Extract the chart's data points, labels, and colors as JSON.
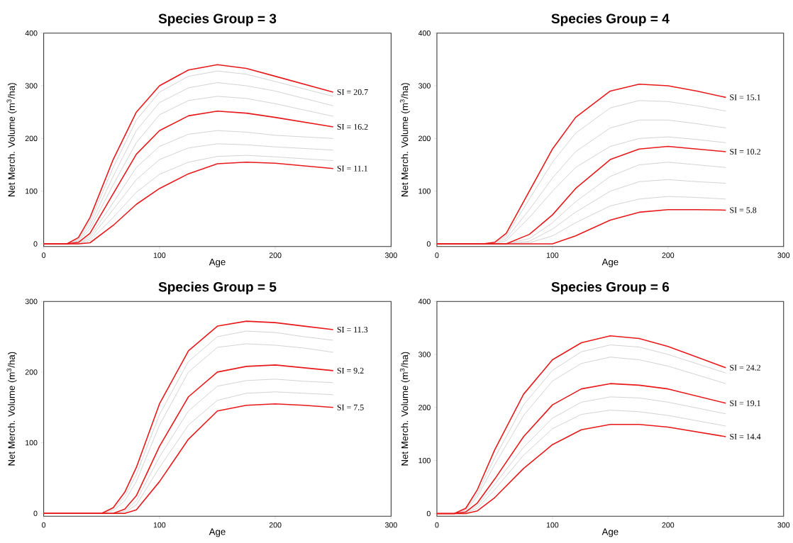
{
  "chart_data": [
    {
      "type": "line",
      "title": "Species Group = 3",
      "xlabel": "Age",
      "ylabel": "Net Merch. Volume (m$^{3}$/ha)",
      "xlim": [
        0,
        300
      ],
      "ylim": [
        -5,
        400
      ],
      "xticks": [
        0,
        100,
        200,
        300
      ],
      "yticks": [
        0,
        100,
        200,
        300,
        400
      ],
      "x": [
        0,
        20,
        30,
        40,
        60,
        80,
        100,
        125,
        150,
        175,
        200,
        250
      ],
      "series": [
        {
          "color": "#c8c8c8",
          "values": [
            0,
            0,
            10,
            42,
            145,
            235,
            288,
            318,
            328,
            322,
            308,
            280
          ]
        },
        {
          "color": "#c8c8c8",
          "values": [
            0,
            0,
            8,
            35,
            128,
            215,
            268,
            296,
            306,
            300,
            290,
            262
          ]
        },
        {
          "color": "#c8c8c8",
          "values": [
            0,
            0,
            6,
            28,
            112,
            192,
            245,
            272,
            280,
            276,
            266,
            242
          ]
        },
        {
          "color": "#c8c8c8",
          "values": [
            0,
            0,
            2,
            14,
            78,
            145,
            185,
            208,
            215,
            212,
            206,
            200
          ]
        },
        {
          "color": "#c8c8c8",
          "values": [
            0,
            0,
            1,
            10,
            65,
            122,
            160,
            182,
            190,
            188,
            184,
            178
          ]
        },
        {
          "color": "#c8c8c8",
          "values": [
            0,
            0,
            0,
            6,
            50,
            98,
            132,
            155,
            166,
            168,
            165,
            158
          ]
        },
        {
          "name": "SI = 20.7",
          "color": "#e8191b",
          "values": [
            0,
            0,
            12,
            50,
            160,
            250,
            300,
            330,
            340,
            333,
            318,
            288
          ]
        },
        {
          "name": "SI = 16.2",
          "color": "#e8191b",
          "values": [
            0,
            0,
            3,
            20,
            95,
            170,
            215,
            243,
            252,
            248,
            240,
            222
          ]
        },
        {
          "name": "SI = 11.1",
          "color": "#e8191b",
          "values": [
            0,
            0,
            0,
            2,
            35,
            75,
            105,
            133,
            152,
            155,
            153,
            143
          ]
        }
      ]
    },
    {
      "type": "line",
      "title": "Species Group = 4",
      "xlabel": "Age",
      "ylabel": "Net Merch. Volume (m$^{3}$/ha)",
      "xlim": [
        0,
        300
      ],
      "ylim": [
        -5,
        400
      ],
      "xticks": [
        0,
        100,
        200,
        300
      ],
      "yticks": [
        0,
        100,
        200,
        300,
        400
      ],
      "x": [
        0,
        40,
        50,
        60,
        80,
        100,
        120,
        150,
        175,
        200,
        225,
        250
      ],
      "series": [
        {
          "color": "#c8c8c8",
          "values": [
            0,
            0,
            2,
            15,
            85,
            155,
            210,
            258,
            272,
            270,
            262,
            252
          ]
        },
        {
          "color": "#c8c8c8",
          "values": [
            0,
            0,
            1,
            10,
            65,
            125,
            175,
            220,
            235,
            235,
            228,
            220
          ]
        },
        {
          "color": "#c8c8c8",
          "values": [
            0,
            0,
            0,
            6,
            50,
            100,
            145,
            185,
            200,
            203,
            198,
            192
          ]
        },
        {
          "color": "#c8c8c8",
          "values": [
            0,
            0,
            0,
            0,
            10,
            40,
            80,
            128,
            150,
            155,
            150,
            145
          ]
        },
        {
          "color": "#c8c8c8",
          "values": [
            0,
            0,
            0,
            0,
            5,
            28,
            60,
            100,
            118,
            122,
            118,
            115
          ]
        },
        {
          "color": "#c8c8c8",
          "values": [
            0,
            0,
            0,
            0,
            2,
            15,
            40,
            72,
            85,
            90,
            88,
            85
          ]
        },
        {
          "name": "SI = 15.1",
          "color": "#e8191b",
          "values": [
            0,
            0,
            3,
            20,
            100,
            180,
            240,
            290,
            303,
            300,
            290,
            278
          ]
        },
        {
          "name": "SI = 10.2",
          "color": "#e8191b",
          "values": [
            0,
            0,
            0,
            0,
            18,
            55,
            105,
            160,
            180,
            185,
            180,
            175
          ]
        },
        {
          "name": "SI = 5.8",
          "color": "#e8191b",
          "values": [
            0,
            0,
            0,
            0,
            0,
            0,
            15,
            45,
            60,
            65,
            65,
            64
          ]
        }
      ]
    },
    {
      "type": "line",
      "title": "Species Group = 5",
      "xlabel": "Age",
      "ylabel": "Net Merch. Volume (m$^{3}$/ha)",
      "xlim": [
        0,
        300
      ],
      "ylim": [
        -4,
        300
      ],
      "xticks": [
        0,
        100,
        200,
        300
      ],
      "yticks": [
        0,
        100,
        200,
        300
      ],
      "x": [
        0,
        50,
        60,
        70,
        80,
        100,
        125,
        150,
        175,
        200,
        225,
        250
      ],
      "series": [
        {
          "color": "#c8c8c8",
          "values": [
            0,
            0,
            6,
            24,
            55,
            140,
            215,
            250,
            258,
            256,
            250,
            245
          ]
        },
        {
          "color": "#c8c8c8",
          "values": [
            0,
            0,
            4,
            18,
            45,
            125,
            200,
            235,
            240,
            238,
            234,
            228
          ]
        },
        {
          "color": "#c8c8c8",
          "values": [
            0,
            0,
            0,
            3,
            18,
            80,
            145,
            180,
            188,
            190,
            187,
            185
          ]
        },
        {
          "color": "#c8c8c8",
          "values": [
            0,
            0,
            0,
            1,
            12,
            65,
            125,
            160,
            170,
            172,
            170,
            168
          ]
        },
        {
          "name": "SI = 11.3",
          "color": "#e8191b",
          "values": [
            0,
            0,
            8,
            30,
            65,
            155,
            230,
            265,
            272,
            270,
            265,
            260
          ]
        },
        {
          "name": "SI = 9.2",
          "color": "#e8191b",
          "values": [
            0,
            0,
            0,
            6,
            25,
            95,
            165,
            200,
            208,
            210,
            206,
            202
          ]
        },
        {
          "name": "SI = 7.5",
          "color": "#e8191b",
          "values": [
            0,
            0,
            0,
            0,
            5,
            45,
            105,
            145,
            153,
            155,
            153,
            150
          ]
        }
      ]
    },
    {
      "type": "line",
      "title": "Species Group = 6",
      "xlabel": "Age",
      "ylabel": "Net Merch. Volume (m$^{3}$/ha)",
      "xlim": [
        0,
        300
      ],
      "ylim": [
        -5,
        400
      ],
      "xticks": [
        0,
        100,
        200,
        300
      ],
      "yticks": [
        0,
        100,
        200,
        300,
        400
      ],
      "x": [
        0,
        15,
        25,
        35,
        50,
        75,
        100,
        125,
        150,
        175,
        200,
        250
      ],
      "series": [
        {
          "color": "#c8c8c8",
          "values": [
            0,
            0,
            8,
            38,
            105,
            205,
            270,
            305,
            318,
            314,
            300,
            265
          ]
        },
        {
          "color": "#c8c8c8",
          "values": [
            0,
            0,
            6,
            32,
            92,
            185,
            250,
            283,
            295,
            290,
            278,
            245
          ]
        },
        {
          "color": "#c8c8c8",
          "values": [
            0,
            0,
            2,
            15,
            55,
            125,
            180,
            210,
            220,
            218,
            210,
            188
          ]
        },
        {
          "color": "#c8c8c8",
          "values": [
            0,
            0,
            1,
            10,
            45,
            110,
            160,
            187,
            195,
            192,
            185,
            165
          ]
        },
        {
          "name": "SI = 24.2",
          "color": "#e8191b",
          "values": [
            0,
            0,
            10,
            45,
            120,
            225,
            290,
            322,
            335,
            330,
            315,
            275
          ]
        },
        {
          "name": "SI = 19.1",
          "color": "#e8191b",
          "values": [
            0,
            0,
            3,
            20,
            65,
            145,
            205,
            235,
            245,
            242,
            235,
            208
          ]
        },
        {
          "name": "SI = 14.4",
          "color": "#e8191b",
          "values": [
            0,
            0,
            0,
            5,
            30,
            85,
            130,
            158,
            168,
            168,
            163,
            145
          ]
        }
      ]
    }
  ]
}
